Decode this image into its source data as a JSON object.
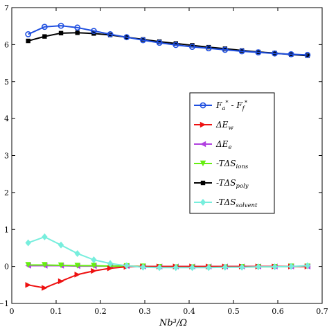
{
  "chart_data": {
    "type": "line",
    "title": "",
    "xlabel": "Nb³/Ω",
    "ylabel": "",
    "xlim": [
      0,
      0.7
    ],
    "ylim": [
      -1,
      7
    ],
    "xticks": [
      "0",
      "0.1",
      "0.2",
      "0.3",
      "0.4",
      "0.5",
      "0.6",
      "0.7"
    ],
    "yticks": [
      "−1",
      "0",
      "1",
      "2",
      "3",
      "4",
      "5",
      "6",
      "7"
    ],
    "grid": false,
    "legend_position": "right",
    "x": [
      0.037,
      0.074,
      0.111,
      0.148,
      0.185,
      0.222,
      0.259,
      0.296,
      0.333,
      0.37,
      0.407,
      0.444,
      0.481,
      0.519,
      0.556,
      0.593,
      0.63,
      0.667
    ],
    "series": [
      {
        "name": "F*a - F*f",
        "color": "#1f4fe0",
        "marker": "circle",
        "values": [
          6.28,
          6.48,
          6.51,
          6.46,
          6.37,
          6.28,
          6.2,
          6.12,
          6.05,
          5.99,
          5.94,
          5.9,
          5.86,
          5.82,
          5.79,
          5.76,
          5.74,
          5.72
        ]
      },
      {
        "name": "ΔEw",
        "color": "#ee1111",
        "marker": "triangle-right",
        "values": [
          -0.5,
          -0.58,
          -0.4,
          -0.22,
          -0.12,
          -0.05,
          -0.01,
          0.0,
          0.0,
          0.0,
          0.0,
          0.0,
          0.0,
          0.0,
          0.0,
          0.0,
          0.0,
          0.0
        ]
      },
      {
        "name": "ΔEe",
        "color": "#b040e0",
        "marker": "triangle-left",
        "values": [
          0.02,
          0.02,
          0.02,
          0.01,
          0.01,
          0.01,
          0.01,
          0.0,
          0.0,
          0.0,
          0.0,
          0.0,
          0.0,
          0.0,
          0.0,
          0.0,
          0.0,
          0.0
        ]
      },
      {
        "name": "-TΔSions",
        "color": "#66ee11",
        "marker": "triangle-down",
        "values": [
          0.04,
          0.04,
          0.03,
          0.02,
          0.02,
          0.01,
          0.01,
          0.0,
          -0.01,
          -0.02,
          -0.02,
          -0.02,
          -0.02,
          -0.01,
          -0.01,
          -0.01,
          0.0,
          0.0
        ]
      },
      {
        "name": "-TΔSpoly",
        "color": "#000000",
        "marker": "square",
        "values": [
          6.1,
          6.22,
          6.31,
          6.32,
          6.3,
          6.26,
          6.2,
          6.14,
          6.08,
          6.03,
          5.98,
          5.93,
          5.89,
          5.84,
          5.8,
          5.77,
          5.73,
          5.7
        ]
      },
      {
        "name": "-TΔSsolvent",
        "color": "#77eedd",
        "marker": "diamond",
        "values": [
          0.64,
          0.8,
          0.58,
          0.35,
          0.18,
          0.08,
          0.02,
          -0.02,
          -0.03,
          -0.03,
          -0.03,
          -0.03,
          -0.02,
          -0.02,
          -0.01,
          -0.01,
          0.0,
          0.02
        ]
      }
    ]
  }
}
